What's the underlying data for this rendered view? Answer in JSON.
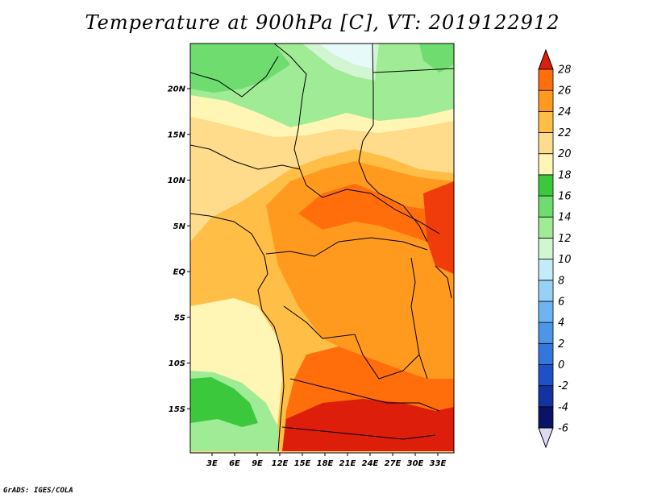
{
  "title": "Temperature at 900hPa [C], VT: 2019122912",
  "credit": "GrADS: IGES/COLA",
  "map": {
    "lat_ticks": [
      {
        "label": "20N",
        "lat": 20
      },
      {
        "label": "15N",
        "lat": 15
      },
      {
        "label": "10N",
        "lat": 10
      },
      {
        "label": "5N",
        "lat": 5
      },
      {
        "label": "EQ",
        "lat": 0
      },
      {
        "label": "5S",
        "lat": -5
      },
      {
        "label": "10S",
        "lat": -10
      },
      {
        "label": "15S",
        "lat": -15
      }
    ],
    "lon_ticks": [
      {
        "label": "3E",
        "lon": 3
      },
      {
        "label": "6E",
        "lon": 6
      },
      {
        "label": "9E",
        "lon": 9
      },
      {
        "label": "12E",
        "lon": 12
      },
      {
        "label": "15E",
        "lon": 15
      },
      {
        "label": "18E",
        "lon": 18
      },
      {
        "label": "21E",
        "lon": 21
      },
      {
        "label": "24E",
        "lon": 24
      },
      {
        "label": "27E",
        "lon": 27
      },
      {
        "label": "30E",
        "lon": 30
      },
      {
        "label": "33E",
        "lon": 33
      }
    ]
  },
  "colorbar": {
    "levels": [
      "-6",
      "-4",
      "-2",
      "0",
      "2",
      "4",
      "6",
      "8",
      "10",
      "12",
      "14",
      "16",
      "18",
      "20",
      "22",
      "24",
      "26",
      "28"
    ],
    "colors": [
      "#0a1466",
      "#1432a0",
      "#1e50c8",
      "#3278dc",
      "#4b96e6",
      "#6eb4f0",
      "#96d2f5",
      "#c3ebfa",
      "#d2f5d2",
      "#a0eb96",
      "#6edc6e",
      "#3cc83c",
      "#fff5b4",
      "#ffdc8c",
      "#ffbe46",
      "#ff9a1e",
      "#ff6e0a",
      "#f03c0a",
      "#dc1e0a"
    ],
    "under_color": "#dcdcf0",
    "over_color": "#dc1e0a"
  }
}
